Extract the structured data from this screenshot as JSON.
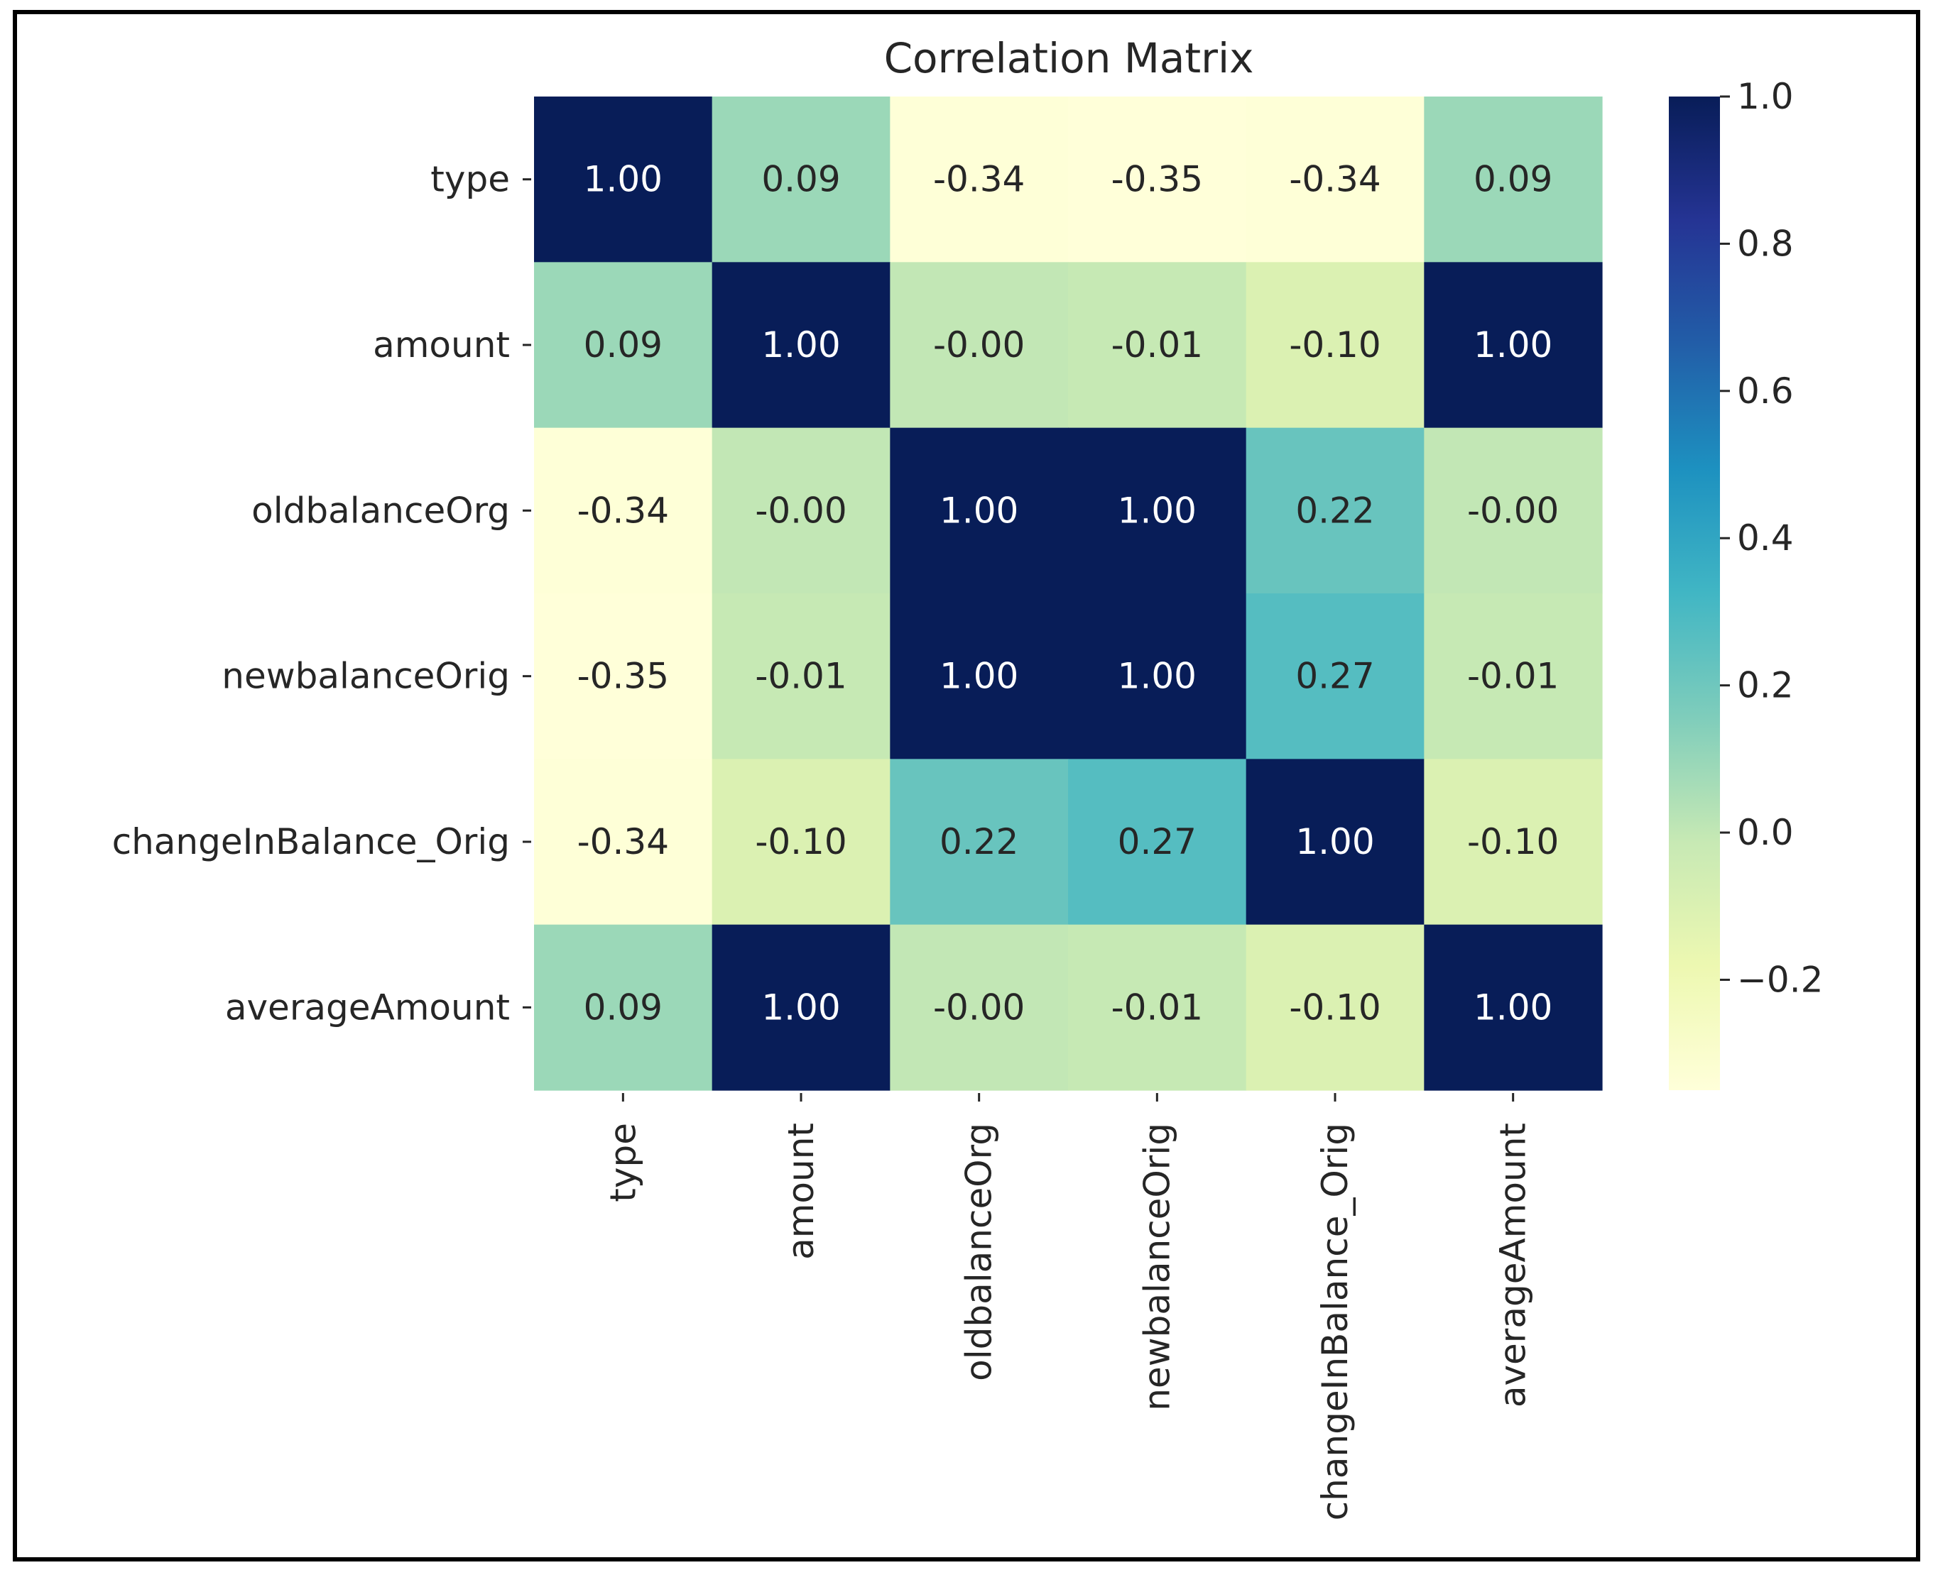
{
  "chart_data": {
    "type": "heatmap",
    "title": "Correlation Matrix",
    "xlabel": "",
    "ylabel": "",
    "row_labels": [
      "type",
      "amount",
      "oldbalanceOrg",
      "newbalanceOrig",
      "changeInBalance_Orig",
      "averageAmount"
    ],
    "column_labels": [
      "type",
      "amount",
      "oldbalanceOrg",
      "newbalanceOrig",
      "changeInBalance_Orig",
      "averageAmount"
    ],
    "values": [
      [
        1.0,
        0.09,
        -0.34,
        -0.35,
        -0.34,
        0.09
      ],
      [
        0.09,
        1.0,
        -0.0,
        -0.01,
        -0.1,
        1.0
      ],
      [
        -0.34,
        -0.0,
        1.0,
        1.0,
        0.22,
        -0.0
      ],
      [
        -0.35,
        -0.01,
        1.0,
        1.0,
        0.27,
        -0.01
      ],
      [
        -0.34,
        -0.1,
        0.22,
        0.27,
        1.0,
        -0.1
      ],
      [
        0.09,
        1.0,
        -0.0,
        -0.01,
        -0.1,
        1.0
      ]
    ],
    "value_labels": [
      [
        "1.00",
        "0.09",
        "-0.34",
        "-0.35",
        "-0.34",
        "0.09"
      ],
      [
        "0.09",
        "1.00",
        "-0.00",
        "-0.01",
        "-0.10",
        "1.00"
      ],
      [
        "-0.34",
        "-0.00",
        "1.00",
        "1.00",
        "0.22",
        "-0.00"
      ],
      [
        "-0.35",
        "-0.01",
        "1.00",
        "1.00",
        "0.27",
        "-0.01"
      ],
      [
        "-0.34",
        "-0.10",
        "0.22",
        "0.27",
        "1.00",
        "-0.10"
      ],
      [
        "0.09",
        "1.00",
        "-0.00",
        "-0.01",
        "-0.10",
        "1.00"
      ]
    ],
    "color_scale": {
      "name": "YlGnBu",
      "vmin": -0.35,
      "vmax": 1.0,
      "ticks": [
        1.0,
        0.8,
        0.6,
        0.4,
        0.2,
        0.0,
        -0.2
      ],
      "tick_labels": [
        "1.0",
        "0.8",
        "0.6",
        "0.4",
        "0.2",
        "0.0",
        "−0.2"
      ],
      "stops": [
        "#ffffd9",
        "#edf8b1",
        "#c7e9b4",
        "#7fcdbb",
        "#41b6c4",
        "#1d91c0",
        "#225ea8",
        "#253494",
        "#081d58"
      ]
    },
    "colorbar_position": "right",
    "grid": false
  }
}
